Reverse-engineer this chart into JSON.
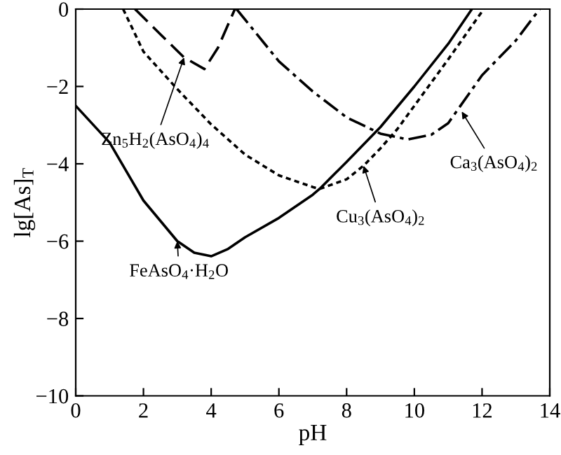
{
  "chart_data": {
    "type": "line",
    "xlabel": "pH",
    "ylabel": "lg[As]$_{T}$",
    "xlim": [
      0,
      14
    ],
    "ylim": [
      -10,
      0
    ],
    "xticks": [
      0,
      2,
      4,
      6,
      8,
      10,
      12,
      14
    ],
    "yticks": [
      -10,
      -8,
      -6,
      -4,
      -2,
      0
    ],
    "grid": false,
    "legend": false,
    "marker": "none",
    "series": [
      {
        "color": "#000000",
        "line_style": "solid",
        "x": [
          0,
          1,
          2,
          3,
          3.5,
          4,
          4.5,
          5,
          6,
          7,
          7.2,
          8,
          9,
          10,
          11,
          11.7
        ],
        "values": [
          -2.5,
          -3.45,
          -4.95,
          -6.0,
          -6.3,
          -6.39,
          -6.2,
          -5.9,
          -5.4,
          -4.8,
          -4.65,
          -3.95,
          -3.05,
          -2.0,
          -0.9,
          0
        ]
      },
      {
        "color": "#000000",
        "line_style": "dotted",
        "x": [
          1.4,
          2,
          3,
          4,
          5,
          6,
          7,
          7.2,
          8,
          8.5,
          9,
          9.5,
          10,
          11,
          12.05
        ],
        "values": [
          0,
          -1.1,
          -2.07,
          -2.98,
          -3.76,
          -4.3,
          -4.6,
          -4.65,
          -4.4,
          -4.05,
          -3.6,
          -3.1,
          -2.5,
          -1.3,
          0
        ]
      },
      {
        "color": "#000000",
        "line_style": "dashed",
        "x": [
          1.75,
          2.5,
          3.2,
          3.8,
          4.2,
          4.7
        ],
        "values": [
          0,
          -0.65,
          -1.25,
          -1.55,
          -1.0,
          0
        ]
      },
      {
        "color": "#000000",
        "line_style": "dashdot",
        "x": [
          4.75,
          6,
          7,
          8,
          9,
          9.8,
          10.5,
          11,
          12,
          13,
          13.7
        ],
        "values": [
          0,
          -1.35,
          -2.13,
          -2.8,
          -3.22,
          -3.37,
          -3.25,
          -2.95,
          -1.71,
          -0.81,
          0
        ]
      }
    ],
    "annotations": [
      {
        "text": "Zn$_{5}$H$_{2}$(AsO$_{4}$)$_{4}$",
        "x": 3.2,
        "y": -1.25
      },
      {
        "text": "Cu$_{3}$(AsO$_{4}$)$_{2}$",
        "x": 8.5,
        "y": -4.05
      },
      {
        "text": "Ca$_{3}$(AsO$_{4}$)$_{2}$",
        "x": 11.4,
        "y": -2.65
      },
      {
        "text": "FeAsO$_{4}$·H$_{2}$O",
        "x": 3.0,
        "y": -6.0
      }
    ]
  }
}
